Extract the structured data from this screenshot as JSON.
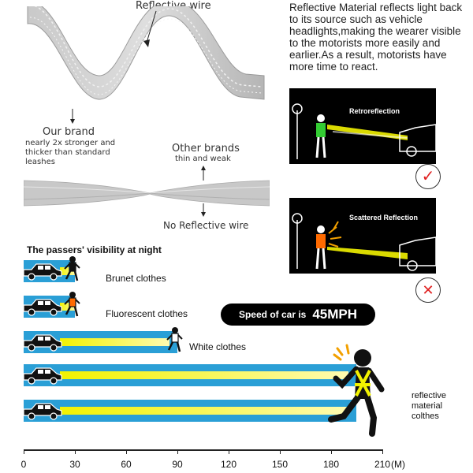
{
  "strap": {
    "reflective_wire": "Reflective wire",
    "our_brand_title": "Our brand",
    "our_brand_desc": "nearly 2x stronger and thicker than standard leashes",
    "other_brands_title": "Other brands",
    "other_brands_desc": "thin and weak",
    "no_reflective_wire": "No Reflective wire"
  },
  "info": {
    "paragraph": "Reflective Material reflects light back to its source such as vehicle headlights,making the wearer visible to the motorists more easily and earlier.As a result, motorists have more time to react.",
    "panel1_label": "Retroreflection",
    "panel2_label": "Scattered Reflection"
  },
  "visibility": {
    "title": "The passers' visibility at night",
    "speed_prefix": "Speed of car is",
    "speed_value": "45MPH",
    "rows": [
      {
        "label": "Brunet clothes",
        "distance": 30
      },
      {
        "label": "Fluorescent clothes",
        "distance": 30
      },
      {
        "label": "White clothes",
        "distance": 90
      },
      {
        "label": "",
        "distance": 195
      },
      {
        "label": "reflective material colthes",
        "distance": 195
      }
    ],
    "axis_ticks": [
      "0",
      "30",
      "60",
      "90",
      "120",
      "150",
      "180",
      "210"
    ],
    "axis_unit": "(M)"
  },
  "colors": {
    "lane": "#2a9fd6",
    "beam": "#f2f200",
    "panel": "#000000",
    "check": "#e02020",
    "vest_green": "#33cc33",
    "vest_orange": "#ff6a00"
  }
}
